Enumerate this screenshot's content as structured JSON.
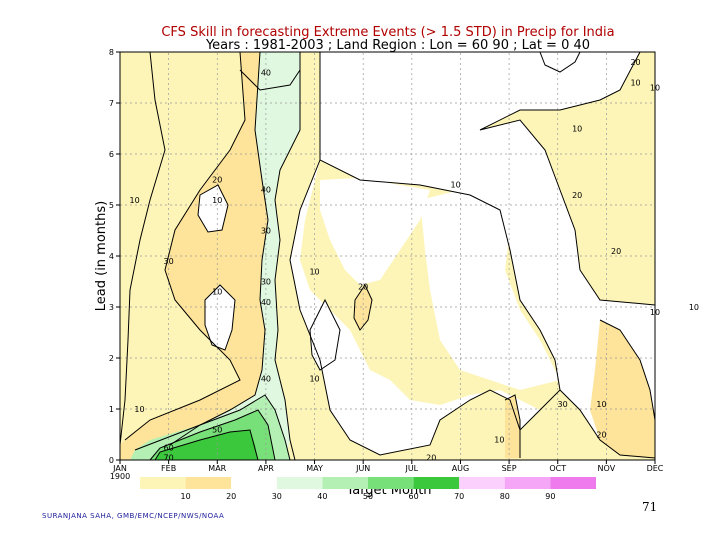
{
  "chart_data": {
    "type": "heatmap",
    "title": "CFS Skill in forecasting Extreme Events (> 1.5 STD) in Precip for India",
    "subtitle": "Years : 1981-2003 ; Land Region : Lon = 60 90 ; Lat = 0 40",
    "xlabel": "Target Month",
    "ylabel": "Lead (in months)",
    "x_ticks": [
      "JAN\n1900",
      "FEB",
      "MAR",
      "APR",
      "MAY",
      "JUN",
      "JUL",
      "AUG",
      "SEP",
      "OCT",
      "NOV",
      "DEC"
    ],
    "y_ticks": [
      "0",
      "1",
      "2",
      "3",
      "4",
      "5",
      "6",
      "7",
      "8"
    ],
    "ylim": [
      0,
      8
    ],
    "grid": true,
    "colorbar": {
      "levels": [
        "10",
        "20",
        "30",
        "40",
        "50",
        "60",
        "70",
        "80",
        "90"
      ],
      "colors": [
        "#fdf5b8",
        "#fde49a",
        "#ffffff",
        "#e0f8e0",
        "#b4f0b4",
        "#78e078",
        "#3cc83c",
        "#fcd0fc",
        "#f6a6f6",
        "#ee7aee"
      ]
    },
    "contour_labels": [
      {
        "text": "20",
        "x": 10.6,
        "y": 7.8
      },
      {
        "text": "10",
        "x": 10.6,
        "y": 7.4
      },
      {
        "text": "10",
        "x": 11.0,
        "y": 7.3
      },
      {
        "text": "40",
        "x": 3.0,
        "y": 7.6
      },
      {
        "text": "10",
        "x": 9.4,
        "y": 6.5
      },
      {
        "text": "20",
        "x": 2.0,
        "y": 5.5
      },
      {
        "text": "40",
        "x": 3.0,
        "y": 5.3
      },
      {
        "text": "10",
        "x": 6.9,
        "y": 5.4
      },
      {
        "text": "10",
        "x": 0.3,
        "y": 5.1
      },
      {
        "text": "10",
        "x": 2.0,
        "y": 5.1
      },
      {
        "text": "20",
        "x": 9.4,
        "y": 5.2
      },
      {
        "text": "30",
        "x": 3.0,
        "y": 4.5
      },
      {
        "text": "20",
        "x": 10.2,
        "y": 4.1
      },
      {
        "text": "30",
        "x": 1.0,
        "y": 3.9
      },
      {
        "text": "10",
        "x": 4.0,
        "y": 3.7
      },
      {
        "text": "30",
        "x": 3.0,
        "y": 3.5
      },
      {
        "text": "20",
        "x": 5.0,
        "y": 3.4
      },
      {
        "text": "10",
        "x": 2.0,
        "y": 3.3
      },
      {
        "text": "40",
        "x": 3.0,
        "y": 3.1
      },
      {
        "text": "10",
        "x": 11.0,
        "y": 2.9
      },
      {
        "text": "10",
        "x": 11.8,
        "y": 3.0
      },
      {
        "text": "40",
        "x": 3.0,
        "y": 1.6
      },
      {
        "text": "10",
        "x": 4.0,
        "y": 1.6
      },
      {
        "text": "10",
        "x": 0.4,
        "y": 1.0
      },
      {
        "text": "30",
        "x": 9.1,
        "y": 1.1
      },
      {
        "text": "10",
        "x": 9.9,
        "y": 1.1
      },
      {
        "text": "50",
        "x": 2.0,
        "y": 0.6
      },
      {
        "text": "10",
        "x": 7.8,
        "y": 0.4
      },
      {
        "text": "20",
        "x": 9.9,
        "y": 0.5
      },
      {
        "text": "60",
        "x": 1.0,
        "y": 0.25
      },
      {
        "text": "70",
        "x": 1.0,
        "y": 0.05
      },
      {
        "text": "20",
        "x": 6.4,
        "y": 0.05
      }
    ]
  },
  "footer": {
    "credit": "SURANJANA SAHA, GMB/EMC/NCEP/NWS/NOAA",
    "slide_number": "71"
  }
}
